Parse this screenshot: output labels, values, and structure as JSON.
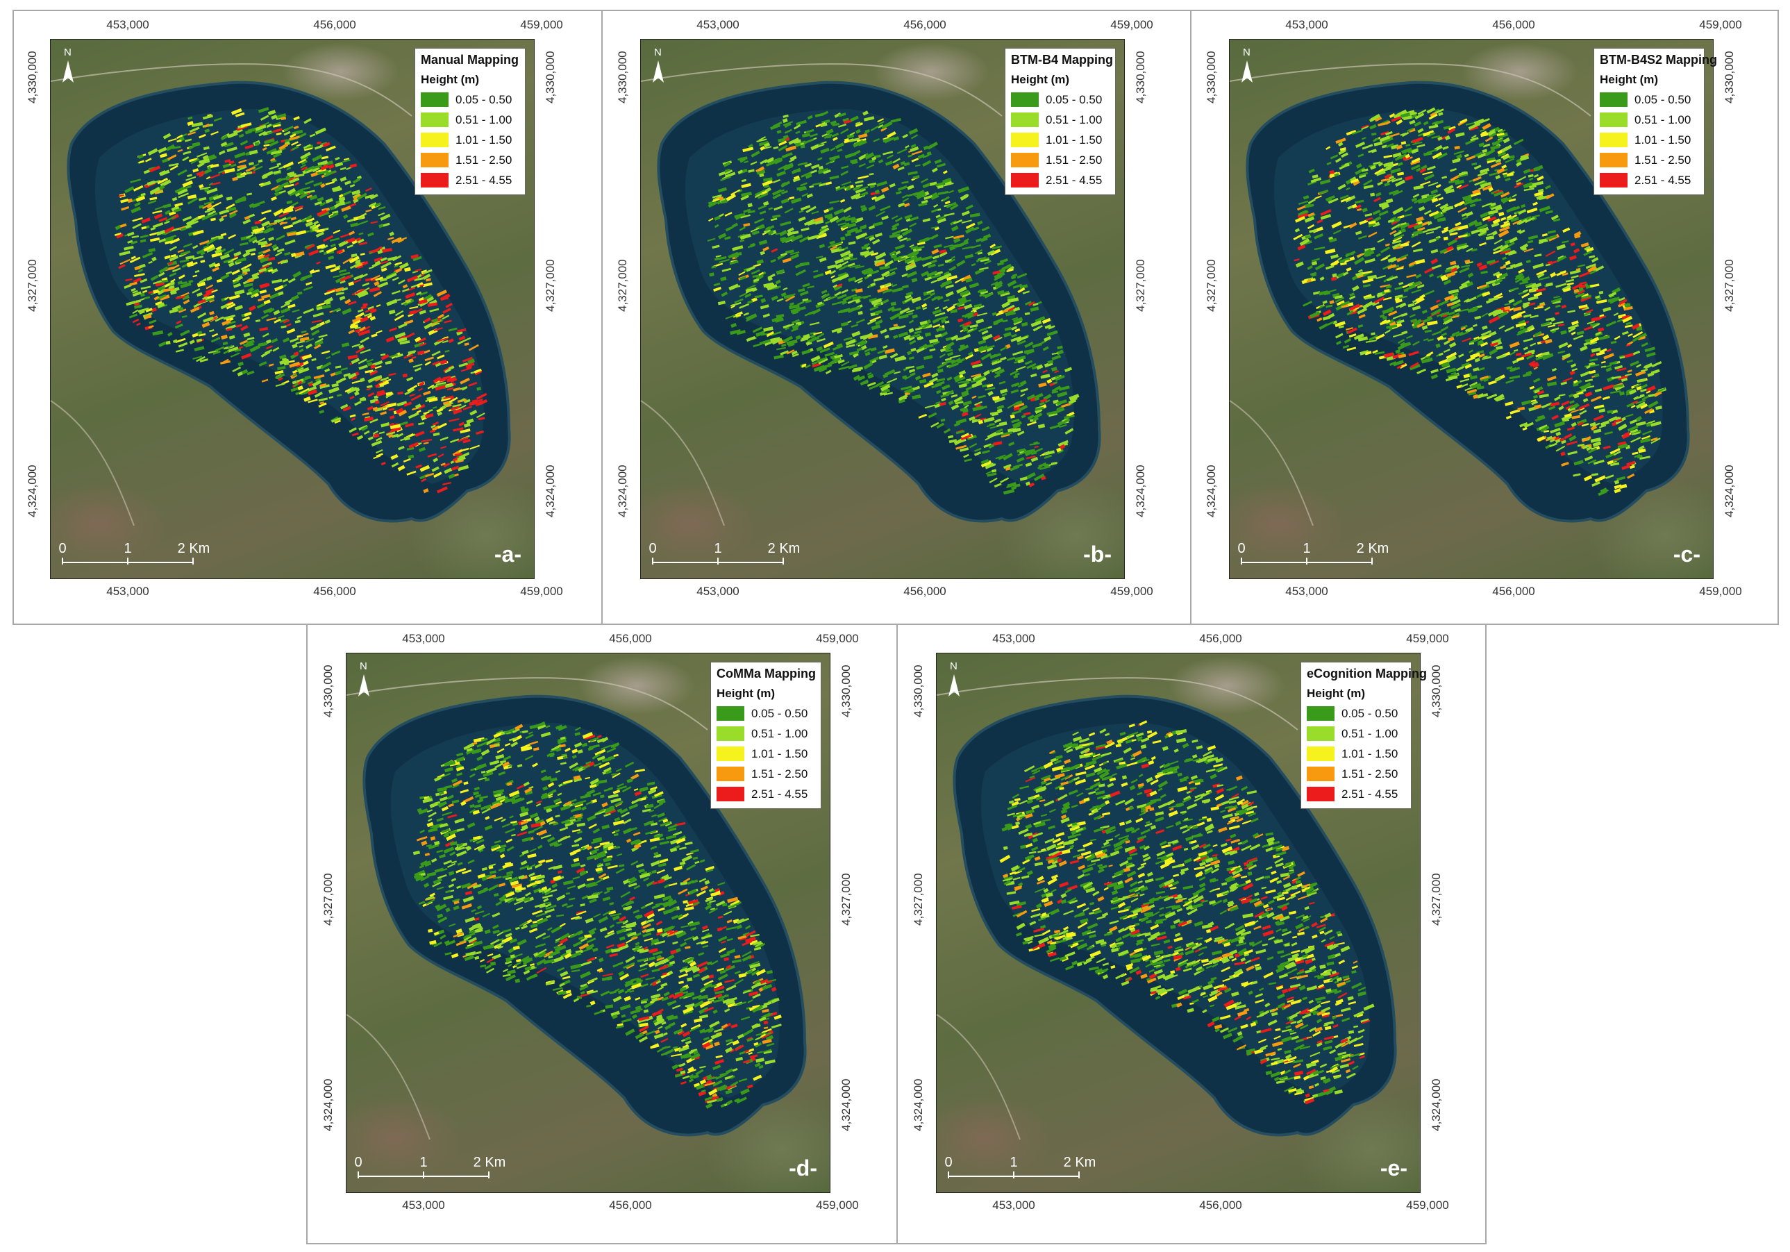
{
  "legend": {
    "subtitle": "Height (m)",
    "classes": [
      {
        "label": "0.05 - 0.50",
        "color": "#3a9a1a"
      },
      {
        "label": "0.51 - 1.00",
        "color": "#99dc2a"
      },
      {
        "label": "1.01 - 1.50",
        "color": "#f5f21e"
      },
      {
        "label": "1.51 - 2.50",
        "color": "#f79a10"
      },
      {
        "label": "2.51 - 4.55",
        "color": "#ed1c1c"
      }
    ]
  },
  "axes": {
    "easting": [
      "453,000",
      "456,000",
      "459,000"
    ],
    "northing": [
      "4,330,000",
      "4,327,000",
      "4,324,000"
    ]
  },
  "north_label": "N",
  "scale_labels": [
    "0",
    "1",
    "2 Km"
  ],
  "panels": [
    {
      "title": "Manual Mapping",
      "letter": "-a-",
      "mix": [
        0.3,
        0.34,
        0.16,
        0.1,
        0.1
      ],
      "east_hot": true
    },
    {
      "title": "BTM-B4 Mapping",
      "letter": "-b-",
      "mix": [
        0.6,
        0.3,
        0.07,
        0.025,
        0.005
      ],
      "east_hot": false
    },
    {
      "title": "BTM-B4S2 Mapping",
      "letter": "-c-",
      "mix": [
        0.36,
        0.34,
        0.16,
        0.09,
        0.05
      ],
      "east_hot": false
    },
    {
      "title": "CoMMa Mapping",
      "letter": "-d-",
      "mix": [
        0.52,
        0.24,
        0.14,
        0.06,
        0.04
      ],
      "east_hot": false
    },
    {
      "title": "eCognition Mapping",
      "letter": "-e-",
      "mix": [
        0.4,
        0.32,
        0.17,
        0.06,
        0.05
      ],
      "east_hot": false
    }
  ]
}
